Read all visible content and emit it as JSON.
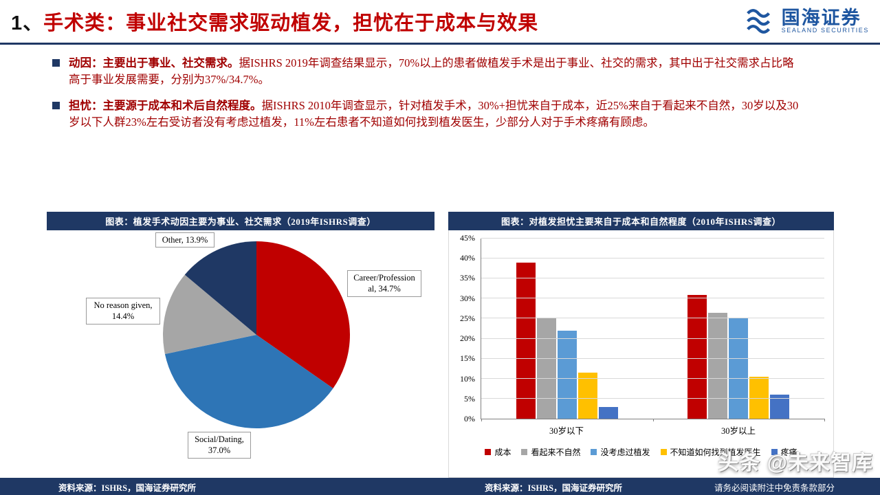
{
  "page": {
    "header": {
      "title_prefix": "1、",
      "title": "手术类：事业社交需求驱动植发，担忧在于成本与效果",
      "logo_text": "国海证券",
      "logo_sub": "SEALAND SECURITIES"
    },
    "bullets": [
      {
        "lead": "动因：主要出于事业、社交需求。",
        "body": "据ISHRS 2019年调查结果显示，70%以上的患者做植发手术是出于事业、社交的需求，其中出于社交需求占比略高于事业发展需要，分别为37%/34.7%。"
      },
      {
        "lead": "担忧：主要源于成本和术后自然程度。",
        "body": "据ISHRS 2010年调查显示，针对植发手术，30%+担忧来自于成本，近25%来自于看起来不自然，30岁以及30岁以下人群23%左右受访者没有考虑过植发，11%左右患者不知道如何找到植发医生，少部分人对于手术疼痛有顾虑。"
      }
    ],
    "footer": {
      "source_left": "资料来源：ISHRS，国海证券研究所",
      "source_right": "资料来源：ISHRS，国海证券研究所",
      "disclaimer": "请务必阅读附注中免责条款部分",
      "watermark": "头条 @未来智库"
    }
  },
  "chart_data": [
    {
      "type": "pie",
      "title": "图表：植发手术动因主要为事业、社交需求（2019年ISHRS调查）",
      "labels": [
        "Career/Professional",
        "Social/Dating",
        "No reason given",
        "Other"
      ],
      "values": [
        34.7,
        37.0,
        14.4,
        13.9
      ],
      "colors": [
        "#C00000",
        "#2E75B6",
        "#A6A6A6",
        "#1F3864"
      ],
      "callouts": [
        {
          "id": "other",
          "text": "Other, 13.9%"
        },
        {
          "id": "career",
          "text": "Career/Profession\nal, 34.7%"
        },
        {
          "id": "noreason",
          "text": "No reason given,\n14.4%"
        },
        {
          "id": "social",
          "text": "Social/Dating,\n37.0%"
        }
      ]
    },
    {
      "type": "bar",
      "title": "图表：对植发担忧主要来自于成本和自然程度（2010年ISHRS调查）",
      "categories": [
        "30岁以下",
        "30岁以上"
      ],
      "series": [
        {
          "name": "成本",
          "color": "#C00000",
          "values": [
            39,
            31
          ]
        },
        {
          "name": "看起来不自然",
          "color": "#A6A6A6",
          "values": [
            25,
            26.5
          ]
        },
        {
          "name": "没考虑过植发",
          "color": "#5B9BD5",
          "values": [
            22,
            25
          ]
        },
        {
          "name": "不知道如何找到植发医生",
          "color": "#FFC000",
          "values": [
            11.5,
            10.5
          ]
        },
        {
          "name": "疼痛",
          "color": "#4472C4",
          "values": [
            3,
            6
          ]
        }
      ],
      "ylim": [
        0,
        45
      ],
      "ytick_step": 5,
      "grid": true,
      "legend_position": "bottom"
    }
  ]
}
